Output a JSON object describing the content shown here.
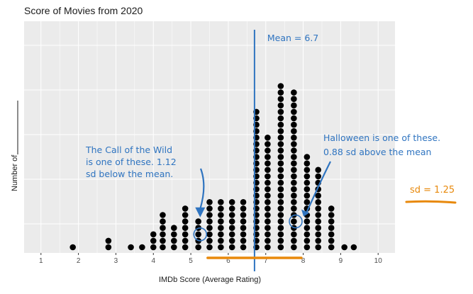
{
  "chart_data": {
    "type": "scatter",
    "subtype": "dot-plot",
    "title": "Score of Movies from 2020",
    "xlabel": "IMDb Score (Average Rating)",
    "ylabel": "Number of",
    "xticks": [
      "1",
      "2",
      "3",
      "4",
      "5",
      "6",
      "7",
      "8",
      "9",
      "10"
    ],
    "xlim": [
      0.55,
      10.45
    ],
    "grid": true,
    "mean_value": 6.7,
    "sd_value": 1.25,
    "mean_label": "Mean = 6.7",
    "sd_label": "sd = 1.25",
    "columns": [
      {
        "x": 1.85,
        "count": 1
      },
      {
        "x": 2.8,
        "count": 2
      },
      {
        "x": 3.4,
        "count": 1
      },
      {
        "x": 3.7,
        "count": 1
      },
      {
        "x": 4.0,
        "count": 3
      },
      {
        "x": 4.25,
        "count": 6
      },
      {
        "x": 4.55,
        "count": 4
      },
      {
        "x": 4.85,
        "count": 7
      },
      {
        "x": 5.2,
        "count": 5
      },
      {
        "x": 5.5,
        "count": 8
      },
      {
        "x": 5.8,
        "count": 8
      },
      {
        "x": 6.1,
        "count": 8
      },
      {
        "x": 6.4,
        "count": 8
      },
      {
        "x": 6.75,
        "count": 22
      },
      {
        "x": 7.05,
        "count": 18
      },
      {
        "x": 7.4,
        "count": 26
      },
      {
        "x": 7.75,
        "count": 25
      },
      {
        "x": 8.1,
        "count": 15
      },
      {
        "x": 8.4,
        "count": 13
      },
      {
        "x": 8.75,
        "count": 7
      },
      {
        "x": 9.1,
        "count": 1
      },
      {
        "x": 9.35,
        "count": 1
      }
    ],
    "annotations": [
      {
        "lines": [
          "The Call of the Wild",
          "is one of these. 1.12",
          "sd below the mean."
        ],
        "highlight_x": 5.25,
        "highlight_row": 2
      },
      {
        "lines": [
          "Halloween is one of these.",
          "0.88 sd above the mean"
        ],
        "highlight_x": 7.8,
        "highlight_row": 4
      }
    ],
    "colors": {
      "panel": "#ebebeb",
      "grid": "#ffffff",
      "dots": "#000000",
      "mean_line": "#2f74c0",
      "annotation": "#2f74c0",
      "sd_highlight": "#e8890c"
    }
  }
}
